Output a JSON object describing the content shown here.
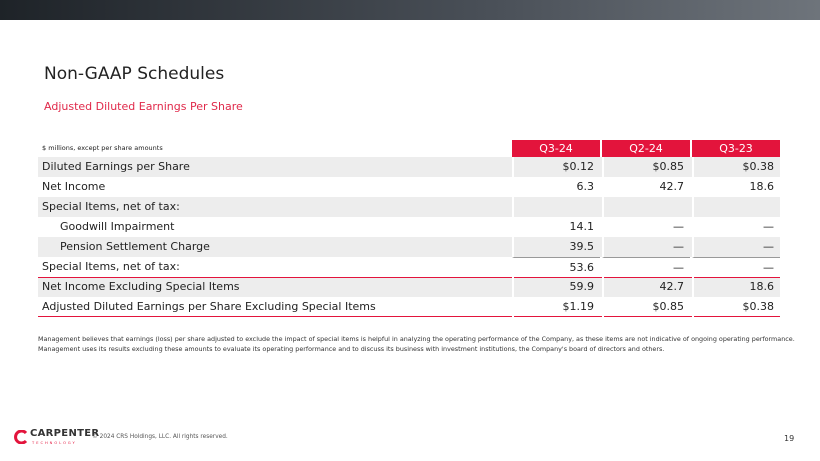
{
  "header": {
    "title": "Non-GAAP Schedules",
    "subtitle": "Adjusted Diluted Earnings Per Share"
  },
  "table": {
    "note": "$ millions, except per share amounts",
    "columns": [
      "Q3-24",
      "Q2-24",
      "Q3-23"
    ],
    "rows": [
      [
        "Diluted Earnings per Share",
        "$0.12",
        "$0.85",
        "$0.38"
      ],
      [
        "Net Income",
        "6.3",
        "42.7",
        "18.6"
      ],
      [
        "Special Items, net of tax:"
      ],
      [
        "Goodwill Impairment",
        "14.1",
        "—",
        "—"
      ],
      [
        "Pension Settlement Charge",
        "39.5",
        "—",
        "—"
      ],
      [
        "Special Items, net of tax:",
        "53.6",
        "—",
        "—"
      ],
      [
        "Net Income Excluding Special Items",
        "59.9",
        "42.7",
        "18.6"
      ],
      [
        "Adjusted Diluted Earnings per Share Excluding Special Items",
        "$1.19",
        "$0.85",
        "$0.38"
      ]
    ]
  },
  "footnote": [
    "Management believes that earnings (loss) per share adjusted to exclude the impact of special items is helpful in analyzing the operating performance of the Company, as these items are not indicative of ongoing operating performance.",
    "Management uses its results excluding these amounts to evaluate its operating performance and to discuss its business with investment institutions, the Company's board of directors and others."
  ],
  "footer": {
    "logo": "CARPENTER",
    "logo_sub": "TECHNOLOGY",
    "copyright": "© 2024 CRS Holdings, LLC. All rights reserved.",
    "page": "19"
  }
}
